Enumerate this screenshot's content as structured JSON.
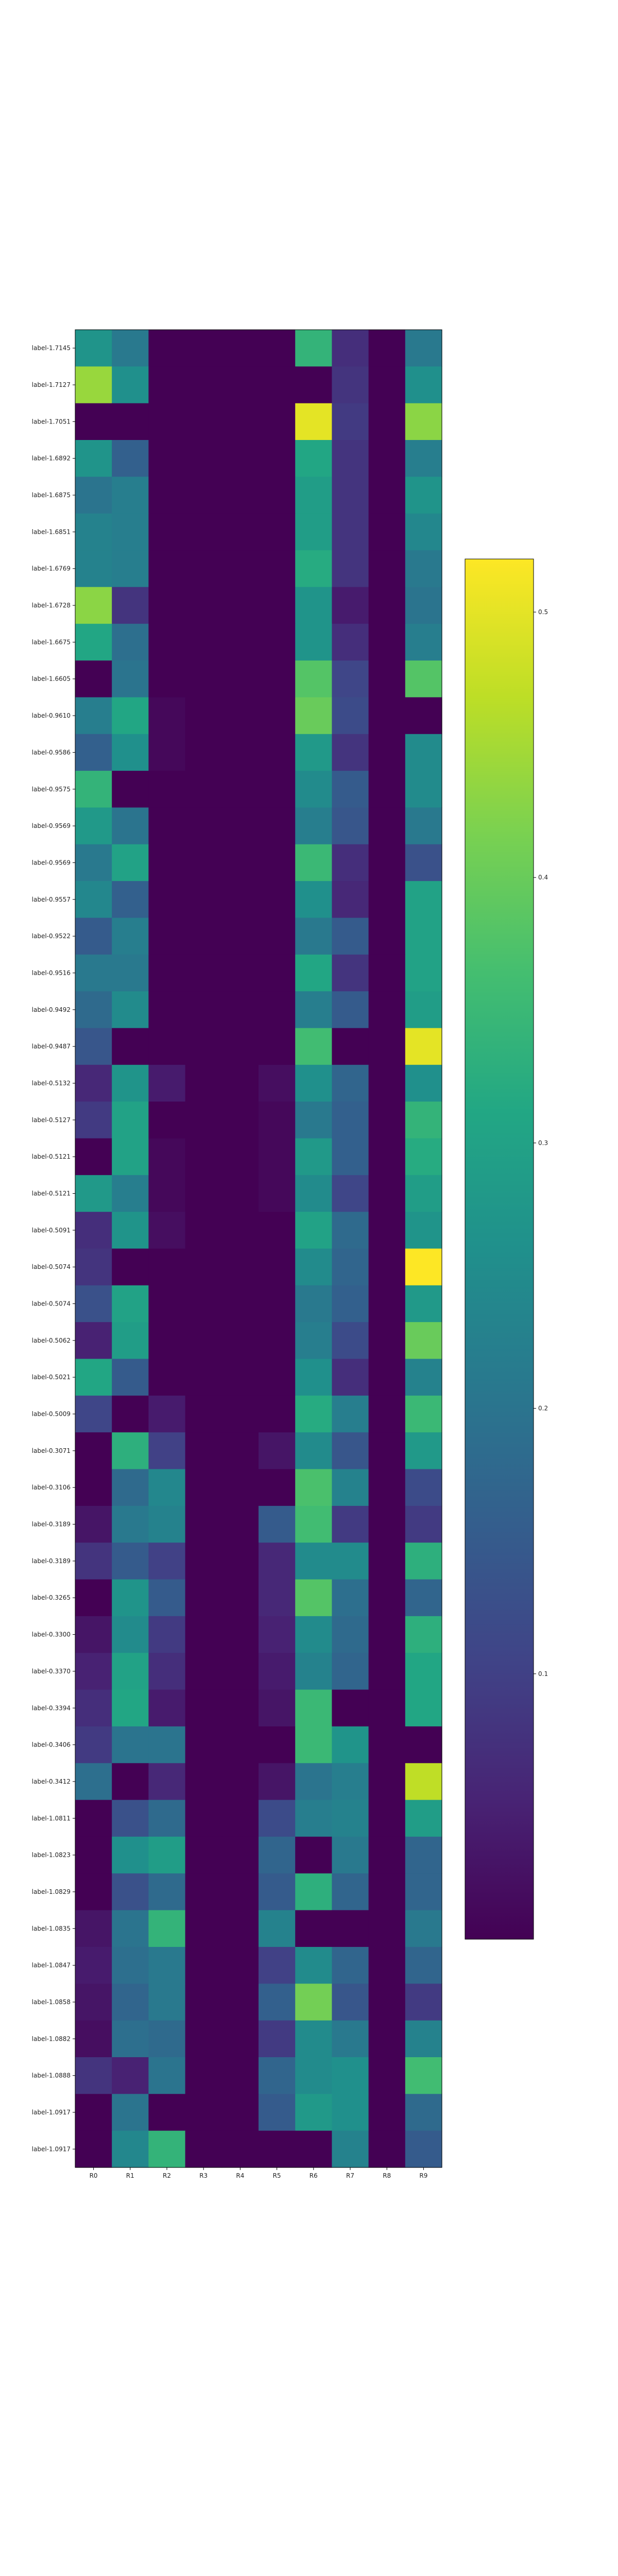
{
  "chart_data": {
    "type": "heatmap",
    "title": "",
    "xlabel": "",
    "ylabel": "",
    "columns": [
      "R0",
      "R1",
      "R2",
      "R3",
      "R4",
      "R5",
      "R6",
      "R7",
      "R8",
      "R9"
    ],
    "rows": [
      "label-1.7145",
      "label-1.7127",
      "label-1.7051",
      "label-1.6892",
      "label-1.6875",
      "label-1.6851",
      "label-1.6769",
      "label-1.6728",
      "label-1.6675",
      "label-1.6605",
      "label-0.9610",
      "label-0.9586",
      "label-0.9575",
      "label-0.9569",
      "label-0.9569",
      "label-0.9557",
      "label-0.9522",
      "label-0.9516",
      "label-0.9492",
      "label-0.9487",
      "label-0.5132",
      "label-0.5127",
      "label-0.5121",
      "label-0.5121",
      "label-0.5091",
      "label-0.5074",
      "label-0.5074",
      "label-0.5062",
      "label-0.5021",
      "label-0.5009",
      "label-0.3071",
      "label-0.3106",
      "label-0.3189",
      "label-0.3189",
      "label-0.3265",
      "label-0.3300",
      "label-0.3370",
      "label-0.3394",
      "label-0.3406",
      "label-0.3412",
      "label-1.0811",
      "label-1.0823",
      "label-1.0829",
      "label-1.0835",
      "label-1.0847",
      "label-1.0858",
      "label-1.0882",
      "label-1.0888",
      "label-1.0917",
      "label-1.0917"
    ],
    "values": [
      [
        0.27,
        0.21,
        0.0,
        0.0,
        0.0,
        0.0,
        0.34,
        0.07,
        0.0,
        0.21
      ],
      [
        0.44,
        0.26,
        0.0,
        0.0,
        0.0,
        0.0,
        0.0,
        0.08,
        0.0,
        0.26
      ],
      [
        0.0,
        0.0,
        0.0,
        0.0,
        0.0,
        0.0,
        0.5,
        0.09,
        0.0,
        0.43
      ],
      [
        0.27,
        0.16,
        0.0,
        0.0,
        0.0,
        0.0,
        0.31,
        0.08,
        0.0,
        0.22
      ],
      [
        0.2,
        0.22,
        0.0,
        0.0,
        0.0,
        0.0,
        0.29,
        0.08,
        0.0,
        0.27
      ],
      [
        0.23,
        0.22,
        0.0,
        0.0,
        0.0,
        0.0,
        0.29,
        0.08,
        0.0,
        0.24
      ],
      [
        0.23,
        0.22,
        0.0,
        0.0,
        0.0,
        0.0,
        0.32,
        0.08,
        0.0,
        0.21
      ],
      [
        0.43,
        0.08,
        0.0,
        0.0,
        0.0,
        0.0,
        0.27,
        0.04,
        0.0,
        0.2
      ],
      [
        0.31,
        0.19,
        0.0,
        0.0,
        0.0,
        0.0,
        0.27,
        0.07,
        0.0,
        0.22
      ],
      [
        0.0,
        0.2,
        0.0,
        0.0,
        0.0,
        0.0,
        0.38,
        0.11,
        0.0,
        0.38
      ],
      [
        0.22,
        0.31,
        0.01,
        0.0,
        0.0,
        0.0,
        0.4,
        0.12,
        0.0,
        0.0
      ],
      [
        0.16,
        0.26,
        0.01,
        0.0,
        0.0,
        0.0,
        0.28,
        0.08,
        0.0,
        0.25
      ],
      [
        0.34,
        0.0,
        0.0,
        0.0,
        0.0,
        0.0,
        0.25,
        0.15,
        0.0,
        0.25
      ],
      [
        0.28,
        0.2,
        0.0,
        0.0,
        0.0,
        0.0,
        0.22,
        0.14,
        0.0,
        0.21
      ],
      [
        0.21,
        0.3,
        0.0,
        0.0,
        0.0,
        0.0,
        0.35,
        0.07,
        0.0,
        0.13
      ],
      [
        0.24,
        0.16,
        0.0,
        0.0,
        0.0,
        0.0,
        0.26,
        0.06,
        0.0,
        0.3
      ],
      [
        0.15,
        0.22,
        0.0,
        0.0,
        0.0,
        0.0,
        0.21,
        0.15,
        0.0,
        0.3
      ],
      [
        0.21,
        0.21,
        0.0,
        0.0,
        0.0,
        0.0,
        0.31,
        0.08,
        0.0,
        0.3
      ],
      [
        0.18,
        0.25,
        0.0,
        0.0,
        0.0,
        0.0,
        0.22,
        0.15,
        0.0,
        0.29
      ],
      [
        0.14,
        0.0,
        0.0,
        0.0,
        0.0,
        0.0,
        0.36,
        0.0,
        0.0,
        0.5
      ],
      [
        0.06,
        0.27,
        0.04,
        0.0,
        0.0,
        0.02,
        0.26,
        0.17,
        0.0,
        0.26
      ],
      [
        0.09,
        0.3,
        0.0,
        0.0,
        0.0,
        0.01,
        0.21,
        0.16,
        0.0,
        0.34
      ],
      [
        0.0,
        0.3,
        0.01,
        0.0,
        0.0,
        0.01,
        0.28,
        0.16,
        0.0,
        0.32
      ],
      [
        0.28,
        0.22,
        0.01,
        0.0,
        0.0,
        0.01,
        0.25,
        0.11,
        0.0,
        0.29
      ],
      [
        0.07,
        0.27,
        0.02,
        0.0,
        0.0,
        0.0,
        0.3,
        0.18,
        0.0,
        0.27
      ],
      [
        0.08,
        0.0,
        0.0,
        0.0,
        0.0,
        0.0,
        0.25,
        0.17,
        0.0,
        0.52
      ],
      [
        0.13,
        0.3,
        0.0,
        0.0,
        0.0,
        0.0,
        0.21,
        0.16,
        0.0,
        0.28
      ],
      [
        0.05,
        0.29,
        0.0,
        0.0,
        0.0,
        0.0,
        0.22,
        0.12,
        0.0,
        0.4
      ],
      [
        0.31,
        0.15,
        0.0,
        0.0,
        0.0,
        0.0,
        0.26,
        0.07,
        0.0,
        0.23
      ],
      [
        0.11,
        0.0,
        0.04,
        0.0,
        0.0,
        0.0,
        0.32,
        0.22,
        0.0,
        0.35
      ],
      [
        0.0,
        0.33,
        0.1,
        0.0,
        0.0,
        0.03,
        0.25,
        0.14,
        0.0,
        0.28
      ],
      [
        0.0,
        0.18,
        0.24,
        0.0,
        0.0,
        0.0,
        0.37,
        0.23,
        0.0,
        0.12
      ],
      [
        0.03,
        0.21,
        0.23,
        0.0,
        0.0,
        0.15,
        0.36,
        0.09,
        0.0,
        0.09
      ],
      [
        0.08,
        0.15,
        0.1,
        0.0,
        0.0,
        0.06,
        0.25,
        0.25,
        0.0,
        0.33
      ],
      [
        0.0,
        0.27,
        0.15,
        0.0,
        0.0,
        0.06,
        0.38,
        0.19,
        0.0,
        0.17
      ],
      [
        0.03,
        0.25,
        0.09,
        0.0,
        0.0,
        0.05,
        0.25,
        0.18,
        0.0,
        0.33
      ],
      [
        0.05,
        0.3,
        0.07,
        0.0,
        0.0,
        0.04,
        0.23,
        0.17,
        0.0,
        0.31
      ],
      [
        0.07,
        0.31,
        0.04,
        0.0,
        0.0,
        0.03,
        0.35,
        0.0,
        0.0,
        0.31
      ],
      [
        0.09,
        0.2,
        0.2,
        0.0,
        0.0,
        0.0,
        0.35,
        0.27,
        0.0,
        0.0
      ],
      [
        0.19,
        0.0,
        0.06,
        0.0,
        0.0,
        0.03,
        0.2,
        0.22,
        0.0,
        0.47
      ],
      [
        0.0,
        0.13,
        0.18,
        0.0,
        0.0,
        0.12,
        0.22,
        0.23,
        0.0,
        0.29
      ],
      [
        0.0,
        0.26,
        0.29,
        0.0,
        0.0,
        0.17,
        0.0,
        0.21,
        0.0,
        0.17
      ],
      [
        0.0,
        0.13,
        0.18,
        0.0,
        0.0,
        0.15,
        0.33,
        0.17,
        0.0,
        0.17
      ],
      [
        0.03,
        0.2,
        0.34,
        0.0,
        0.0,
        0.23,
        0.0,
        0.0,
        0.0,
        0.21
      ],
      [
        0.04,
        0.19,
        0.21,
        0.0,
        0.0,
        0.1,
        0.25,
        0.17,
        0.0,
        0.17
      ],
      [
        0.03,
        0.17,
        0.21,
        0.0,
        0.0,
        0.16,
        0.41,
        0.14,
        0.0,
        0.09
      ],
      [
        0.02,
        0.19,
        0.18,
        0.0,
        0.0,
        0.09,
        0.25,
        0.21,
        0.0,
        0.23
      ],
      [
        0.08,
        0.05,
        0.2,
        0.0,
        0.0,
        0.17,
        0.25,
        0.26,
        0.0,
        0.36
      ],
      [
        0.0,
        0.2,
        0.0,
        0.0,
        0.0,
        0.15,
        0.28,
        0.26,
        0.0,
        0.18
      ],
      [
        0.0,
        0.24,
        0.34,
        0.0,
        0.0,
        0.0,
        0.0,
        0.23,
        0.0,
        0.15
      ]
    ],
    "colorscale": "viridis",
    "vmin": 0.0,
    "vmax": 0.52,
    "colorbar_ticks": [
      0.1,
      0.2,
      0.3,
      0.4,
      0.5
    ],
    "colorbar_tick_labels": [
      "0.1",
      "0.2",
      "0.3",
      "0.4",
      "0.5"
    ],
    "grid": false
  }
}
